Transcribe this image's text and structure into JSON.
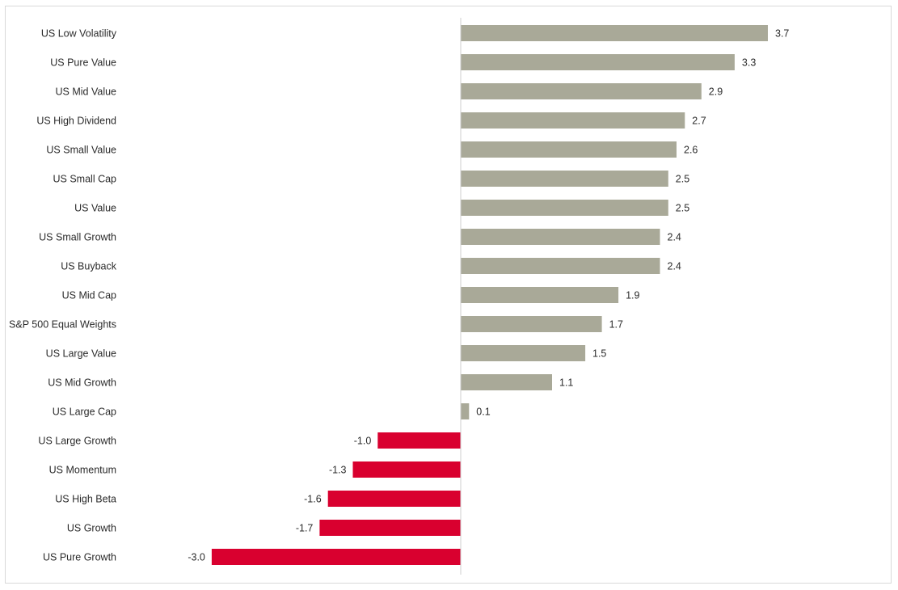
{
  "chart_data": {
    "type": "bar",
    "orientation": "horizontal",
    "title": "",
    "xlabel": "",
    "ylabel": "",
    "categories": [
      "US Low Volatility",
      "US Pure Value",
      "US Mid Value",
      "US High Dividend",
      "US Small Value",
      "US Small Cap",
      "US Value",
      "US Small Growth",
      "US Buyback",
      "US Mid Cap",
      "S&P 500 Equal Weights",
      "US Large Value",
      "US Mid Growth",
      "US Large Cap",
      "US Large Growth",
      "US Momentum",
      "US High Beta",
      "US Growth",
      "US Pure Growth"
    ],
    "values": [
      3.7,
      3.3,
      2.9,
      2.7,
      2.6,
      2.5,
      2.5,
      2.4,
      2.4,
      1.9,
      1.7,
      1.5,
      1.1,
      0.1,
      -1.0,
      -1.3,
      -1.6,
      -1.7,
      -3.0
    ],
    "value_labels": [
      "3.7",
      "3.3",
      "2.9",
      "2.7",
      "2.6",
      "2.5",
      "2.5",
      "2.4",
      "2.4",
      "1.9",
      "1.7",
      "1.5",
      "1.1",
      "0.1",
      "-1.0",
      "-1.3",
      "-1.6",
      "-1.7",
      "-3.0"
    ],
    "xlim": [
      -3.0,
      3.7
    ],
    "grid": false,
    "legend": "none",
    "colors": {
      "positive": "#a9a998",
      "negative": "#d9002f",
      "axis": "#cfcfcf",
      "text": "#2b2b2b"
    }
  }
}
